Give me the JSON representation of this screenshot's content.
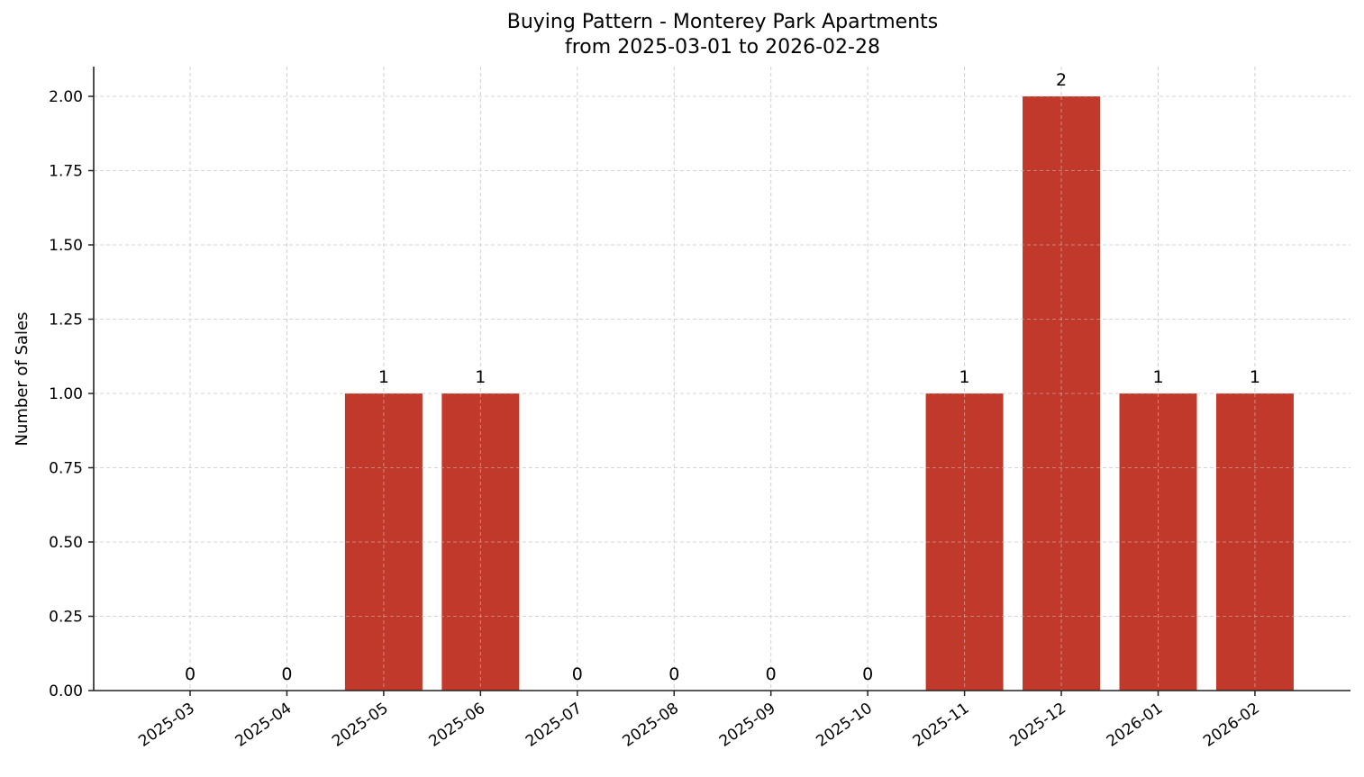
{
  "chart_data": {
    "type": "bar",
    "title": "Buying Pattern - Monterey Park Apartments",
    "subtitle": "from 2025-03-01 to 2026-02-28",
    "xlabel": "",
    "ylabel": "Number of Sales",
    "categories": [
      "2025-03",
      "2025-04",
      "2025-05",
      "2025-06",
      "2025-07",
      "2025-08",
      "2025-09",
      "2025-10",
      "2025-11",
      "2025-12",
      "2026-01",
      "2026-02"
    ],
    "values": [
      0,
      0,
      1,
      1,
      0,
      0,
      0,
      0,
      1,
      2,
      1,
      1
    ],
    "data_labels": [
      "0",
      "0",
      "1",
      "1",
      "0",
      "0",
      "0",
      "0",
      "1",
      "2",
      "1",
      "1"
    ],
    "ylim": [
      0,
      2.1
    ],
    "yticks": [
      "0.00",
      "0.25",
      "0.50",
      "0.75",
      "1.00",
      "1.25",
      "1.50",
      "1.75",
      "2.00"
    ],
    "grid": true,
    "legend": null,
    "bar_color": "#c0392b"
  }
}
